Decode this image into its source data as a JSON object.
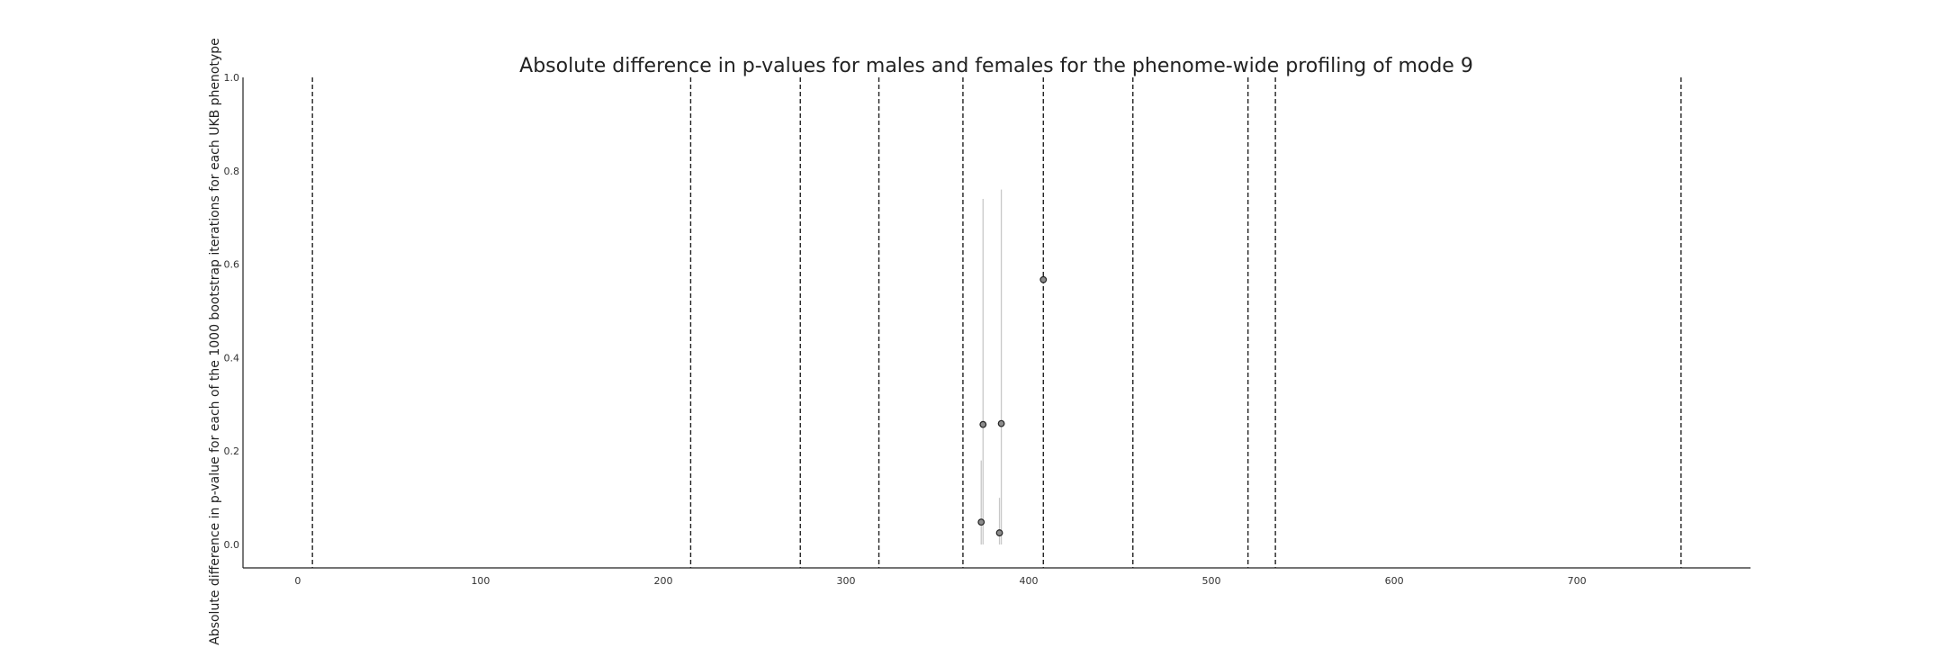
{
  "chart_data": {
    "type": "scatter",
    "title": "Absolute difference in p-values for males and females for the phenome-wide profiling of mode 9",
    "xlabel": "",
    "ylabel": "Absolute difference in p-value for each of the 1000 bootstrap iterations for each UKB phenotype",
    "xlim": [
      -30,
      795
    ],
    "ylim": [
      -0.05,
      1.0
    ],
    "x_ticks": [
      0,
      100,
      200,
      300,
      400,
      500,
      600,
      700
    ],
    "y_ticks": [
      0.0,
      0.2,
      0.4,
      0.6,
      0.8,
      1.0
    ],
    "grid": false,
    "legend": "none",
    "category_boundaries": [
      8,
      215,
      275,
      318,
      364,
      408,
      457,
      520,
      535,
      757
    ],
    "points": [
      {
        "x": 375,
        "y": 0.257,
        "err_low": 0.0,
        "err_high": 0.74
      },
      {
        "x": 385,
        "y": 0.259,
        "err_low": 0.0,
        "err_high": 0.76
      },
      {
        "x": 374,
        "y": 0.048,
        "err_low": 0.0,
        "err_high": 0.18
      },
      {
        "x": 384,
        "y": 0.025,
        "err_low": 0.0,
        "err_high": 0.1
      },
      {
        "x": 408,
        "y": 0.567,
        "err_low": 0.567,
        "err_high": 0.567
      }
    ],
    "colors": {
      "point_fill": "#8c8c8c",
      "point_edge": "#222222",
      "errorbar": "#c8c8c8",
      "boundary": "#222222",
      "axis": "#222222"
    }
  }
}
